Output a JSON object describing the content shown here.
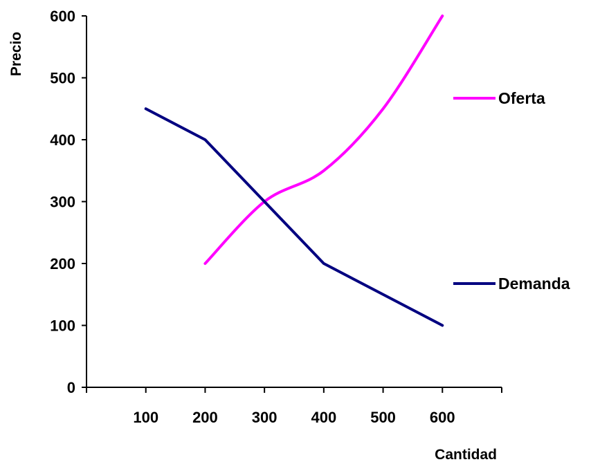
{
  "chart_data": {
    "type": "line",
    "title": "",
    "xlabel": "Cantidad",
    "ylabel": "Precio",
    "x_ticks": [
      "100",
      "200",
      "300",
      "400",
      "500",
      "600"
    ],
    "y_ticks": [
      "0",
      "100",
      "200",
      "300",
      "400",
      "500",
      "600"
    ],
    "xlim": [
      0,
      700
    ],
    "ylim": [
      0,
      600
    ],
    "grid": false,
    "legend_position": "right",
    "series": [
      {
        "name": "Oferta",
        "color": "#ff00ff",
        "smooth": true,
        "x": [
          200,
          300,
          400,
          500,
          600
        ],
        "y": [
          200,
          300,
          350,
          450,
          600
        ]
      },
      {
        "name": "Demanda",
        "color": "#000080",
        "smooth": false,
        "x": [
          100,
          200,
          300,
          400,
          500,
          600
        ],
        "y": [
          450,
          400,
          300,
          200,
          150,
          100
        ]
      }
    ]
  }
}
